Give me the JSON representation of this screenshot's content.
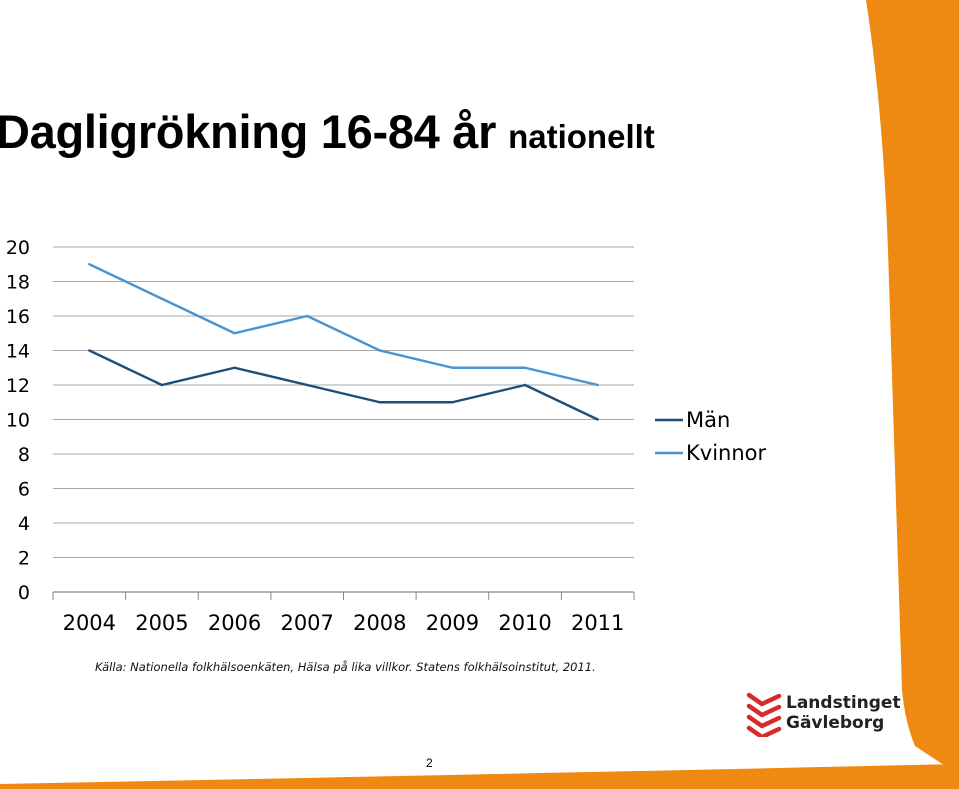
{
  "slide": {
    "title_main": "Dagligrökning 16-84 år",
    "title_sub": "nationellt",
    "source": "Källa: Nationella folkhälsoenkäten, Hälsa på lika villkor. Statens folkhälsoinstitut, 2011.",
    "page_number": "2",
    "logo": {
      "line1": "Landstinget",
      "line2": "Gävleborg"
    },
    "accent_color": "#EE8A12"
  },
  "chart_data": {
    "type": "line",
    "title": "",
    "xlabel": "",
    "ylabel": "",
    "categories": [
      "2004",
      "2005",
      "2006",
      "2007",
      "2008",
      "2009",
      "2010",
      "2011"
    ],
    "series": [
      {
        "name": "Män",
        "values": [
          14,
          12,
          13,
          12,
          11,
          11,
          12,
          10
        ],
        "color": "#1F4E79"
      },
      {
        "name": "Kvinnor",
        "values": [
          19,
          17,
          15,
          16,
          14,
          13,
          13,
          12
        ],
        "color": "#4A94CF"
      }
    ],
    "ylim": [
      0,
      20
    ],
    "yticks": [
      "0",
      "2",
      "4",
      "6",
      "8",
      "10",
      "12",
      "14",
      "16",
      "18",
      "20"
    ],
    "grid": true,
    "legend_position": "right"
  }
}
